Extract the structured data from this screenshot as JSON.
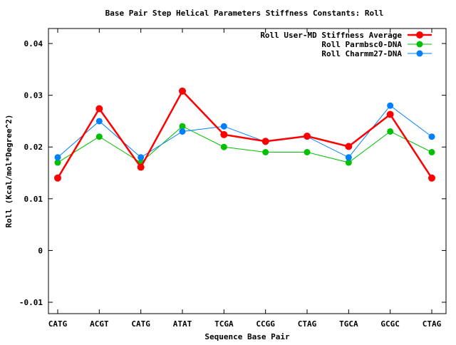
{
  "chart_data": {
    "type": "line",
    "title": "Base Pair Step Helical Parameters Stiffness Constants: Roll",
    "xlabel": "Sequence Base Pair",
    "ylabel": "Roll (Kcal/mol*Degree^2)",
    "categories": [
      "CATG",
      "ACGT",
      "CATG",
      "ATAT",
      "TCGA",
      "CCGG",
      "CTAG",
      "TGCA",
      "GCGC",
      "CTAG"
    ],
    "ylim": [
      -0.0122,
      0.0429
    ],
    "yticks": [
      -0.01,
      0,
      0.01,
      0.02,
      0.03,
      0.04
    ],
    "ytick_labels": [
      "-0.01",
      "0",
      "0.01",
      "0.02",
      "0.03",
      "0.04"
    ],
    "grid": false,
    "legend_position": "top-right",
    "series": [
      {
        "name": "Roll User-MD Stiffness Average",
        "color": "#ff0000",
        "values": [
          0.014,
          0.0274,
          0.0161,
          0.0308,
          0.0224,
          0.0211,
          0.0221,
          0.0201,
          0.0263,
          0.014
        ]
      },
      {
        "name": "Roll Parmbsc0-DNA",
        "color": "#00c000",
        "values": [
          0.017,
          0.022,
          0.017,
          0.024,
          0.02,
          0.019,
          0.019,
          0.017,
          0.023,
          0.019
        ]
      },
      {
        "name": "Roll Charmm27-DNA",
        "color": "#0080ff",
        "values": [
          0.018,
          0.025,
          0.018,
          0.023,
          0.024,
          0.021,
          0.022,
          0.018,
          0.028,
          0.022
        ]
      }
    ]
  }
}
